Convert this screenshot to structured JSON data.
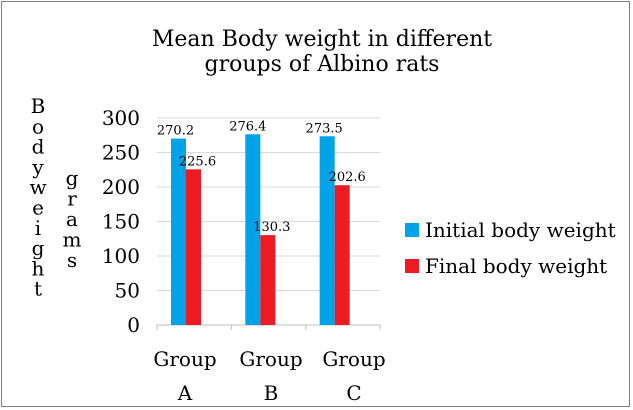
{
  "chart_data": {
    "type": "bar",
    "title_lines": [
      "Mean Body weight in different",
      "groups of Albino rats"
    ],
    "ylabel_lines": [
      "Body weight",
      "grams"
    ],
    "xlabel": "",
    "categories": [
      [
        "Group",
        "A"
      ],
      [
        "Group",
        "B"
      ],
      [
        "Group",
        "C"
      ]
    ],
    "series": [
      {
        "name": "Initial body weight",
        "color": "#00a2e8",
        "values": [
          270.2,
          276.4,
          273.5
        ]
      },
      {
        "name": "Final body weight",
        "color": "#ed1c24",
        "values": [
          225.6,
          130.3,
          202.6
        ]
      }
    ],
    "yticks": [
      0,
      50,
      100,
      150,
      200,
      250,
      300
    ],
    "ylim": [
      0,
      300
    ],
    "data_label_lines": [
      [
        "270.2",
        "276.4",
        "273.5"
      ],
      [
        "225.6",
        "130.3",
        "202.6"
      ]
    ],
    "grid": true,
    "legend_position": "right"
  }
}
